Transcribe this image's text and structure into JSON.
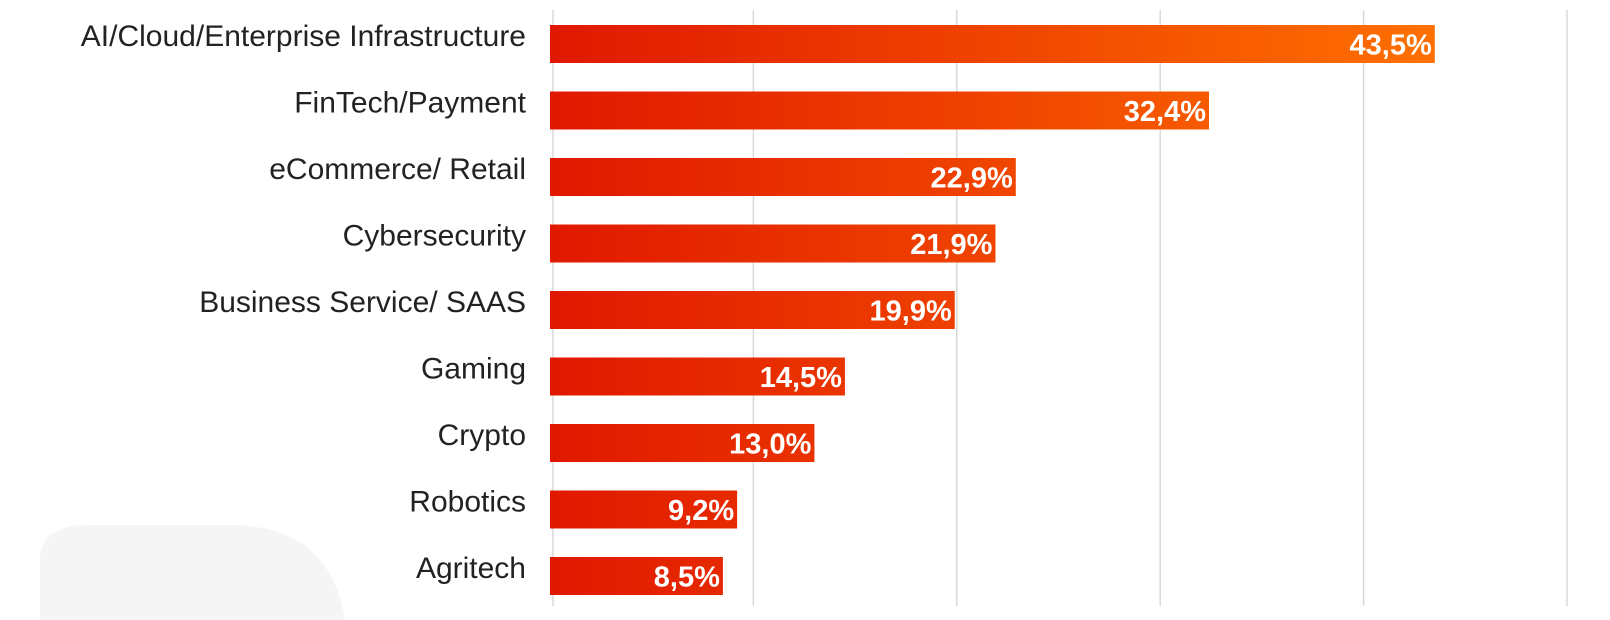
{
  "chart_data": {
    "type": "barh",
    "categories": [
      "AI/Cloud/Enterprise Infrastructure",
      "FinTech/Payment",
      "eCommerce/ Retail",
      "Cybersecurity",
      "Business Service/ SAAS",
      "Gaming",
      "Crypto",
      "Robotics",
      "Agritech"
    ],
    "values": [
      43.5,
      32.4,
      22.9,
      21.9,
      19.9,
      14.5,
      13.0,
      9.2,
      8.5
    ],
    "value_labels": [
      "43,5%",
      "32,4%",
      "22,9%",
      "21,9%",
      "19,9%",
      "14,5%",
      "13,0%",
      "9,2%",
      "8,5%"
    ],
    "colors": [
      "#e01800",
      "#ff7000"
    ],
    "xlim": [
      0,
      50
    ],
    "xticks": [
      0,
      10,
      20,
      30,
      40,
      50
    ],
    "grid": true
  }
}
